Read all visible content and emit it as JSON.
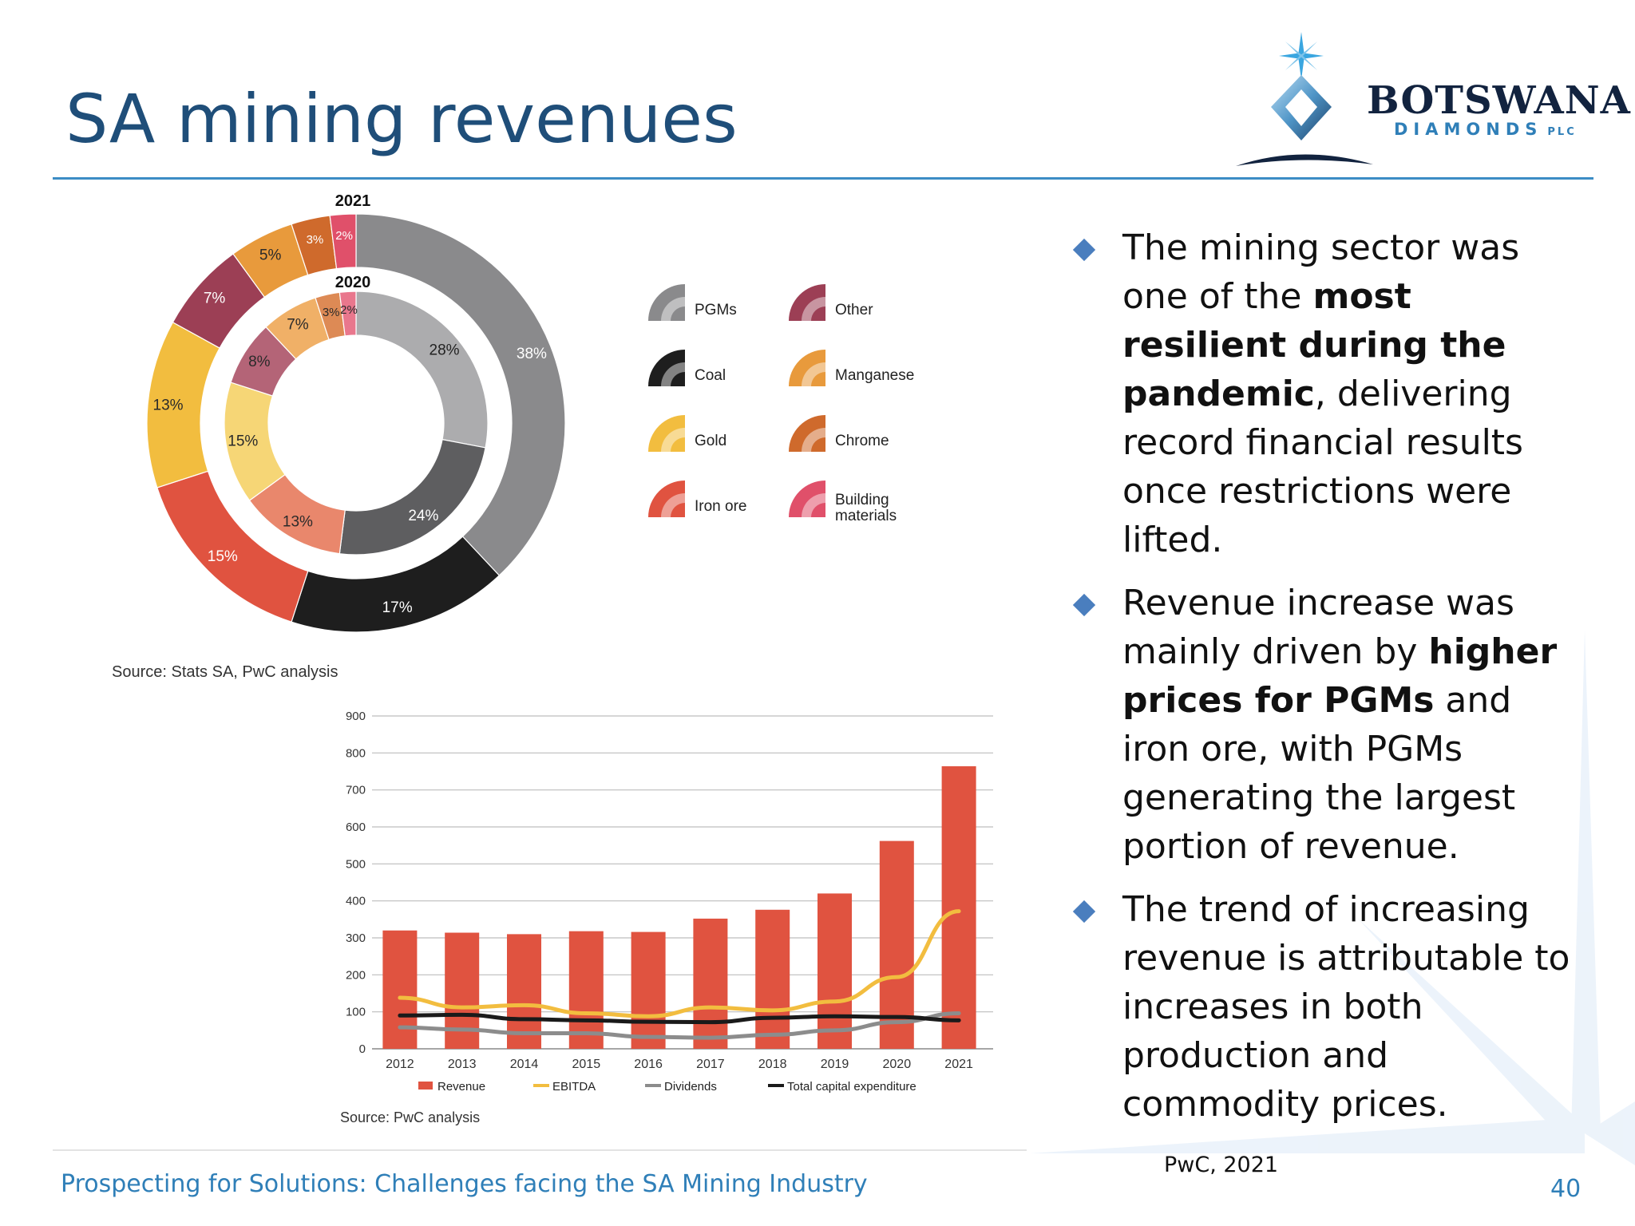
{
  "slide": {
    "title": "SA mining revenues",
    "logo": {
      "name": "BOTSWANA",
      "sub": "DIAMONDS",
      "suffix": "PLC"
    },
    "bullets": [
      {
        "parts": [
          {
            "t": "The mining sector was one of the ",
            "b": false
          },
          {
            "t": "most resilient during the pandemic",
            "b": true
          },
          {
            "t": ", delivering record financial results once restrictions were lifted.",
            "b": false
          }
        ]
      },
      {
        "parts": [
          {
            "t": "Revenue increase was mainly driven by ",
            "b": false
          },
          {
            "t": "higher prices for PGMs",
            "b": true
          },
          {
            "t": " and iron ore, with PGMs generating the largest portion of revenue.",
            "b": false
          }
        ]
      },
      {
        "parts": [
          {
            "t": "The trend of increasing revenue is attributable to increases in both production and commodity prices.",
            "b": false
          }
        ]
      }
    ],
    "footer": "Prospecting for Solutions: Challenges facing the SA Mining Industry",
    "citation": "PwC, 2021",
    "page_number": "40",
    "colors": {
      "title": "#1f4e79",
      "accent": "#3c8dc5",
      "bullet": "#4a7ebe"
    }
  },
  "chart_data": [
    {
      "type": "donut",
      "rings": [
        {
          "label": "2021",
          "values": [
            38,
            17,
            15,
            13,
            7,
            5,
            3,
            2
          ]
        },
        {
          "label": "2020",
          "values": [
            28,
            24,
            13,
            15,
            8,
            7,
            3,
            2
          ]
        }
      ],
      "categories": [
        "PGMs",
        "Coal",
        "Iron ore",
        "Gold",
        "Other",
        "Manganese",
        "Chrome",
        "Building materials"
      ],
      "value_suffix": "%",
      "colors": [
        "#8a8a8c",
        "#1e1e1e",
        "#e05340",
        "#f2bd3f",
        "#9c3f55",
        "#e89a3c",
        "#cf6a2c",
        "#e0506a"
      ],
      "inner_colors": [
        "#acacae",
        "#5e5e60",
        "#e9876c",
        "#f6d676",
        "#b46477",
        "#f0b067",
        "#dd8a55",
        "#e9778d"
      ],
      "legend": [
        {
          "label": "PGMs",
          "color": "#8a8a8c"
        },
        {
          "label": "Other",
          "color": "#9c3f55"
        },
        {
          "label": "Coal",
          "color": "#1e1e1e"
        },
        {
          "label": "Manganese",
          "color": "#e89a3c"
        },
        {
          "label": "Gold",
          "color": "#f2bd3f"
        },
        {
          "label": "Chrome",
          "color": "#cf6a2c"
        },
        {
          "label": "Iron ore",
          "color": "#e05340"
        },
        {
          "label": "Building materials",
          "color": "#e0506a"
        }
      ],
      "source": "Source: Stats SA, PwC analysis"
    },
    {
      "type": "bar",
      "categories": [
        "2012",
        "2013",
        "2014",
        "2015",
        "2016",
        "2017",
        "2018",
        "2019",
        "2020",
        "2021"
      ],
      "series": [
        {
          "name": "Revenue",
          "type": "bar",
          "color": "#e05340",
          "values": [
            320,
            314,
            310,
            318,
            316,
            352,
            376,
            420,
            562,
            764
          ]
        },
        {
          "name": "EBITDA",
          "type": "line",
          "color": "#f2bd3f",
          "values": [
            138,
            112,
            118,
            96,
            88,
            112,
            104,
            128,
            194,
            372
          ]
        },
        {
          "name": "Dividends",
          "type": "line",
          "color": "#8c8c8c",
          "values": [
            58,
            52,
            42,
            42,
            32,
            30,
            38,
            50,
            72,
            96
          ]
        },
        {
          "name": "Total capital expenditure",
          "type": "line",
          "color": "#1a1a1a",
          "values": [
            90,
            92,
            80,
            77,
            73,
            72,
            84,
            88,
            86,
            77
          ]
        }
      ],
      "yticks": [
        "0",
        "100",
        "200",
        "300",
        "400",
        "500",
        "600",
        "700",
        "800",
        "900"
      ],
      "ylim": [
        0,
        900
      ],
      "grid": true,
      "legend_position": "bottom",
      "source": "Source: PwC analysis"
    }
  ]
}
